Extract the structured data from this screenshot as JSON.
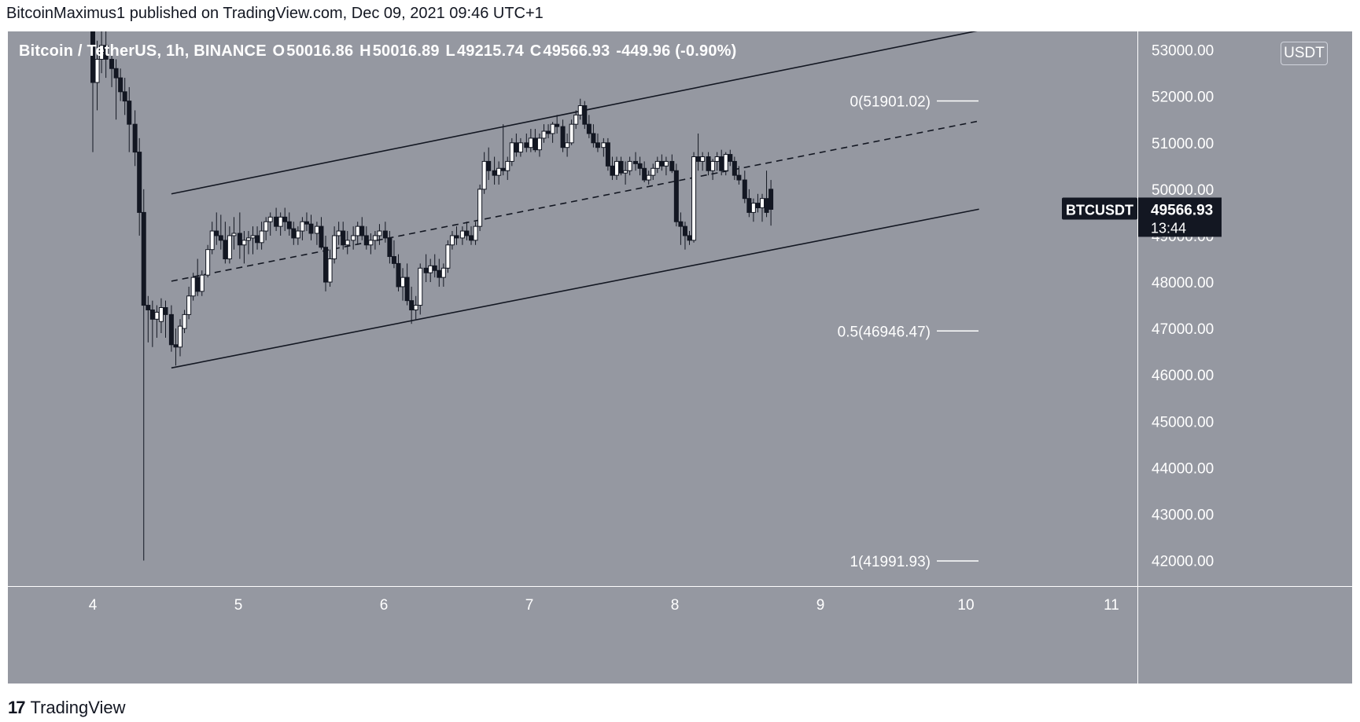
{
  "header": {
    "text": "BitcoinMaximus1 published on TradingView.com, Dec 09, 2021 09:46 UTC+1"
  },
  "legend": {
    "symbol": "Bitcoin / TetherUS, 1h, BINANCE",
    "open_label": "O",
    "open": "50016.86",
    "high_label": "H",
    "high": "50016.89",
    "low_label": "L",
    "low": "49215.74",
    "close_label": "C",
    "close": "49566.93",
    "change": "-449.96 (-0.90%)"
  },
  "currency_badge": "USDT",
  "price_tag": {
    "symbol": "BTCUSDT",
    "price": "49566.93",
    "countdown": "13:44"
  },
  "footer": {
    "logo_glyph": "17",
    "brand": "TradingView"
  },
  "colors": {
    "plot_bg": "#9598a1",
    "candle_up": "#ffffff",
    "candle_down": "#131722",
    "wick": "#131722",
    "channel_line": "#131722",
    "fib_line": "#ffffff",
    "tag_bg": "#131722"
  },
  "chart_data": {
    "type": "candlestick",
    "symbol": "BTCUSDT",
    "timeframe": "1h",
    "x_ticks": [
      "4",
      "5",
      "6",
      "7",
      "8",
      "9",
      "10",
      "11"
    ],
    "y_ticks": [
      "42000.00",
      "43000.00",
      "44000.00",
      "45000.00",
      "46000.00",
      "47000.00",
      "48000.00",
      "49000.00",
      "50000.00",
      "51000.00",
      "52000.00",
      "53000.00"
    ],
    "ylim": [
      41450,
      53400
    ],
    "xlim_days": [
      3.6,
      11.35
    ],
    "fib_levels": [
      {
        "label": "0(51901.02)",
        "value": 51901.02
      },
      {
        "label": "0.5(46946.47)",
        "value": 46946.47
      },
      {
        "label": "1(41991.93)",
        "value": 41991.93
      }
    ],
    "channel": {
      "upper": [
        [
          4.54,
          49900
        ],
        [
          10.09,
          53420
        ]
      ],
      "middle": [
        [
          4.54,
          48020
        ],
        [
          10.09,
          51470
        ]
      ],
      "lower": [
        [
          4.54,
          46150
        ],
        [
          10.09,
          49570
        ]
      ]
    },
    "candles": [
      [
        4.0,
        53550,
        53800,
        50800,
        52300
      ],
      [
        4.03,
        52300,
        53200,
        51700,
        52800
      ],
      [
        4.06,
        52800,
        53400,
        52500,
        53100
      ],
      [
        4.09,
        53100,
        53500,
        52400,
        52800
      ],
      [
        4.13,
        52800,
        53100,
        52200,
        52600
      ],
      [
        4.16,
        52600,
        52800,
        51500,
        52400
      ],
      [
        4.19,
        52400,
        52600,
        51900,
        52100
      ],
      [
        4.22,
        52100,
        52400,
        51600,
        51900
      ],
      [
        4.25,
        51900,
        52200,
        50800,
        51400
      ],
      [
        4.29,
        51400,
        51700,
        50500,
        50800
      ],
      [
        4.32,
        50800,
        51100,
        49000,
        49500
      ],
      [
        4.35,
        49500,
        50000,
        42000,
        47500
      ],
      [
        4.38,
        47500,
        47700,
        46700,
        47400
      ],
      [
        4.41,
        47400,
        47600,
        46600,
        47200
      ],
      [
        4.44,
        47200,
        47500,
        46800,
        47350
      ],
      [
        4.47,
        47150,
        47650,
        46900,
        47450
      ],
      [
        4.5,
        47450,
        47600,
        46800,
        47300
      ],
      [
        4.54,
        47300,
        47500,
        46500,
        46650
      ],
      [
        4.57,
        46650,
        47000,
        46200,
        46600
      ],
      [
        4.6,
        46600,
        47200,
        46400,
        47050
      ],
      [
        4.63,
        47000,
        47400,
        46900,
        47300
      ],
      [
        4.66,
        47300,
        47900,
        47200,
        47700
      ],
      [
        4.69,
        47700,
        48200,
        47600,
        48100
      ],
      [
        4.72,
        48100,
        48500,
        47700,
        47800
      ],
      [
        4.75,
        47800,
        48250,
        47700,
        48150
      ],
      [
        4.79,
        48150,
        48800,
        48100,
        48700
      ],
      [
        4.82,
        48700,
        49300,
        48600,
        49100
      ],
      [
        4.85,
        49100,
        49500,
        48800,
        49000
      ],
      [
        4.88,
        49000,
        49450,
        48700,
        48900
      ],
      [
        4.91,
        48900,
        49300,
        48400,
        48500
      ],
      [
        4.94,
        48500,
        49200,
        48400,
        49000
      ],
      [
        4.97,
        49000,
        49400,
        48700,
        49050
      ],
      [
        5.01,
        49050,
        49500,
        48500,
        48800
      ],
      [
        5.04,
        48800,
        49100,
        48400,
        48900
      ],
      [
        5.07,
        48900,
        49100,
        48600,
        48950
      ],
      [
        5.1,
        48950,
        49200,
        48600,
        49000
      ],
      [
        5.13,
        49000,
        49200,
        48700,
        48850
      ],
      [
        5.16,
        48850,
        49300,
        48700,
        49100
      ],
      [
        5.19,
        49100,
        49400,
        48900,
        49300
      ],
      [
        5.22,
        49300,
        49500,
        49000,
        49400
      ],
      [
        5.26,
        49400,
        49600,
        49100,
        49200
      ],
      [
        5.29,
        49200,
        49500,
        49000,
        49400
      ],
      [
        5.32,
        49400,
        49600,
        49100,
        49300
      ],
      [
        5.35,
        49300,
        49500,
        49000,
        49150
      ],
      [
        5.38,
        49150,
        49300,
        48800,
        48950
      ],
      [
        5.41,
        48950,
        49200,
        48800,
        49100
      ],
      [
        5.44,
        49100,
        49400,
        48900,
        49300
      ],
      [
        5.47,
        49300,
        49500,
        49100,
        49250
      ],
      [
        5.5,
        49250,
        49450,
        48900,
        49050
      ],
      [
        5.54,
        49050,
        49300,
        48800,
        49200
      ],
      [
        5.57,
        49200,
        49400,
        48700,
        48750
      ],
      [
        5.6,
        48750,
        49000,
        47800,
        48000
      ],
      [
        5.63,
        48000,
        48700,
        47900,
        48500
      ],
      [
        5.66,
        48500,
        49200,
        48400,
        49000
      ],
      [
        5.69,
        49000,
        49300,
        48800,
        49100
      ],
      [
        5.72,
        49100,
        49300,
        48700,
        48800
      ],
      [
        5.75,
        48800,
        49100,
        48600,
        48900
      ],
      [
        5.79,
        48900,
        49200,
        48700,
        49000
      ],
      [
        5.82,
        49000,
        49300,
        48800,
        49200
      ],
      [
        5.85,
        49200,
        49400,
        48900,
        49000
      ],
      [
        5.88,
        49000,
        49200,
        48700,
        48800
      ],
      [
        5.91,
        48800,
        49050,
        48600,
        48900
      ],
      [
        5.94,
        48900,
        49100,
        48700,
        49000
      ],
      [
        5.97,
        49000,
        49250,
        48800,
        49100
      ],
      [
        6.01,
        49100,
        49300,
        48850,
        48950
      ],
      [
        6.04,
        48950,
        49100,
        48400,
        48550
      ],
      [
        6.07,
        48550,
        48900,
        48300,
        48400
      ],
      [
        6.1,
        48400,
        48600,
        47800,
        47900
      ],
      [
        6.13,
        47900,
        48300,
        47600,
        48100
      ],
      [
        6.16,
        48100,
        48400,
        47500,
        47600
      ],
      [
        6.19,
        47600,
        47900,
        47100,
        47400
      ],
      [
        6.22,
        47400,
        47700,
        47200,
        47500
      ],
      [
        6.25,
        47500,
        48400,
        47300,
        48300
      ],
      [
        6.29,
        48300,
        48600,
        48000,
        48200
      ],
      [
        6.32,
        48200,
        48500,
        48000,
        48350
      ],
      [
        6.35,
        48350,
        48600,
        48100,
        48250
      ],
      [
        6.38,
        48250,
        48500,
        47900,
        48100
      ],
      [
        6.41,
        48100,
        48400,
        47900,
        48300
      ],
      [
        6.44,
        48300,
        48900,
        48200,
        48800
      ],
      [
        6.47,
        48800,
        49100,
        48700,
        49000
      ],
      [
        6.5,
        49000,
        49200,
        48800,
        48950
      ],
      [
        6.54,
        48950,
        49200,
        48800,
        49100
      ],
      [
        6.57,
        49100,
        49300,
        48900,
        49000
      ],
      [
        6.6,
        49000,
        49200,
        48800,
        48900
      ],
      [
        6.63,
        48900,
        49300,
        48800,
        49200
      ],
      [
        6.66,
        49200,
        50100,
        49100,
        50000
      ],
      [
        6.69,
        50000,
        50800,
        49900,
        50600
      ],
      [
        6.72,
        50600,
        50900,
        50200,
        50400
      ],
      [
        6.76,
        50400,
        50700,
        50100,
        50300
      ],
      [
        6.79,
        50300,
        50600,
        50100,
        50450
      ],
      [
        6.82,
        50450,
        51400,
        50300,
        50400
      ],
      [
        6.85,
        50400,
        50700,
        50200,
        50600
      ],
      [
        6.88,
        50600,
        51100,
        50500,
        51000
      ],
      [
        6.91,
        51000,
        51200,
        50700,
        50800
      ],
      [
        6.94,
        50800,
        51100,
        50700,
        51000
      ],
      [
        6.98,
        51000,
        51200,
        50800,
        50900
      ],
      [
        7.01,
        50900,
        51300,
        50800,
        51100
      ],
      [
        7.04,
        51100,
        51300,
        50800,
        50850
      ],
      [
        7.07,
        50850,
        51200,
        50700,
        51100
      ],
      [
        7.1,
        51100,
        51400,
        51000,
        51250
      ],
      [
        7.13,
        51250,
        51400,
        51100,
        51200
      ],
      [
        7.16,
        51200,
        51450,
        51000,
        51400
      ],
      [
        7.19,
        51400,
        51600,
        51200,
        51350
      ],
      [
        7.23,
        51350,
        51500,
        50800,
        50900
      ],
      [
        7.26,
        50900,
        51200,
        50700,
        51000
      ],
      [
        7.29,
        51000,
        51500,
        50950,
        51400
      ],
      [
        7.32,
        51400,
        51700,
        51300,
        51600
      ],
      [
        7.35,
        51600,
        51950,
        51500,
        51800
      ],
      [
        7.38,
        51800,
        51900,
        51300,
        51400
      ],
      [
        7.41,
        51400,
        51600,
        51100,
        51200
      ],
      [
        7.44,
        51200,
        51400,
        50900,
        51000
      ],
      [
        7.47,
        51000,
        51200,
        50800,
        50900
      ],
      [
        7.51,
        50900,
        51100,
        50700,
        51000
      ],
      [
        7.54,
        51000,
        51100,
        50400,
        50500
      ],
      [
        7.57,
        50500,
        50700,
        50200,
        50300
      ],
      [
        7.6,
        50300,
        50700,
        50200,
        50600
      ],
      [
        7.63,
        50600,
        50700,
        50300,
        50350
      ],
      [
        7.66,
        50350,
        50600,
        50100,
        50400
      ],
      [
        7.69,
        50400,
        50700,
        50300,
        50600
      ],
      [
        7.73,
        50600,
        50800,
        50400,
        50550
      ],
      [
        7.76,
        50550,
        50700,
        50300,
        50450
      ],
      [
        7.79,
        50450,
        50600,
        50150,
        50200
      ],
      [
        7.82,
        50200,
        50400,
        50100,
        50300
      ],
      [
        7.85,
        50300,
        50550,
        50200,
        50450
      ],
      [
        7.88,
        50450,
        50700,
        50350,
        50600
      ],
      [
        7.91,
        50600,
        50750,
        50400,
        50500
      ],
      [
        7.94,
        50500,
        50700,
        50300,
        50600
      ],
      [
        7.98,
        50600,
        50750,
        50350,
        50400
      ],
      [
        8.01,
        50400,
        50550,
        49200,
        49300
      ],
      [
        8.04,
        49300,
        49500,
        48800,
        49200
      ],
      [
        8.07,
        49200,
        49300,
        48700,
        49000
      ],
      [
        8.1,
        49000,
        49100,
        48800,
        48900
      ],
      [
        8.13,
        48900,
        50800,
        48850,
        50700
      ],
      [
        8.16,
        50700,
        51200,
        50400,
        50600
      ],
      [
        8.19,
        50600,
        50800,
        50400,
        50700
      ],
      [
        8.23,
        50700,
        50800,
        50300,
        50400
      ],
      [
        8.26,
        50400,
        50650,
        50200,
        50600
      ],
      [
        8.29,
        50600,
        50800,
        50400,
        50700
      ],
      [
        8.32,
        50700,
        50850,
        50300,
        50400
      ],
      [
        8.35,
        50400,
        50800,
        50300,
        50750
      ],
      [
        8.38,
        50750,
        50850,
        50500,
        50600
      ],
      [
        8.41,
        50600,
        50700,
        50200,
        50300
      ],
      [
        8.44,
        50300,
        50500,
        50100,
        50200
      ],
      [
        8.48,
        50200,
        50400,
        49700,
        49800
      ],
      [
        8.51,
        49800,
        50000,
        49400,
        49500
      ],
      [
        8.54,
        49500,
        49800,
        49300,
        49700
      ],
      [
        8.57,
        49700,
        49900,
        49500,
        49600
      ],
      [
        8.6,
        49600,
        49900,
        49300,
        49800
      ],
      [
        8.63,
        49800,
        50400,
        49400,
        49500
      ],
      [
        8.66,
        50000,
        50200,
        49216,
        49567
      ]
    ]
  }
}
